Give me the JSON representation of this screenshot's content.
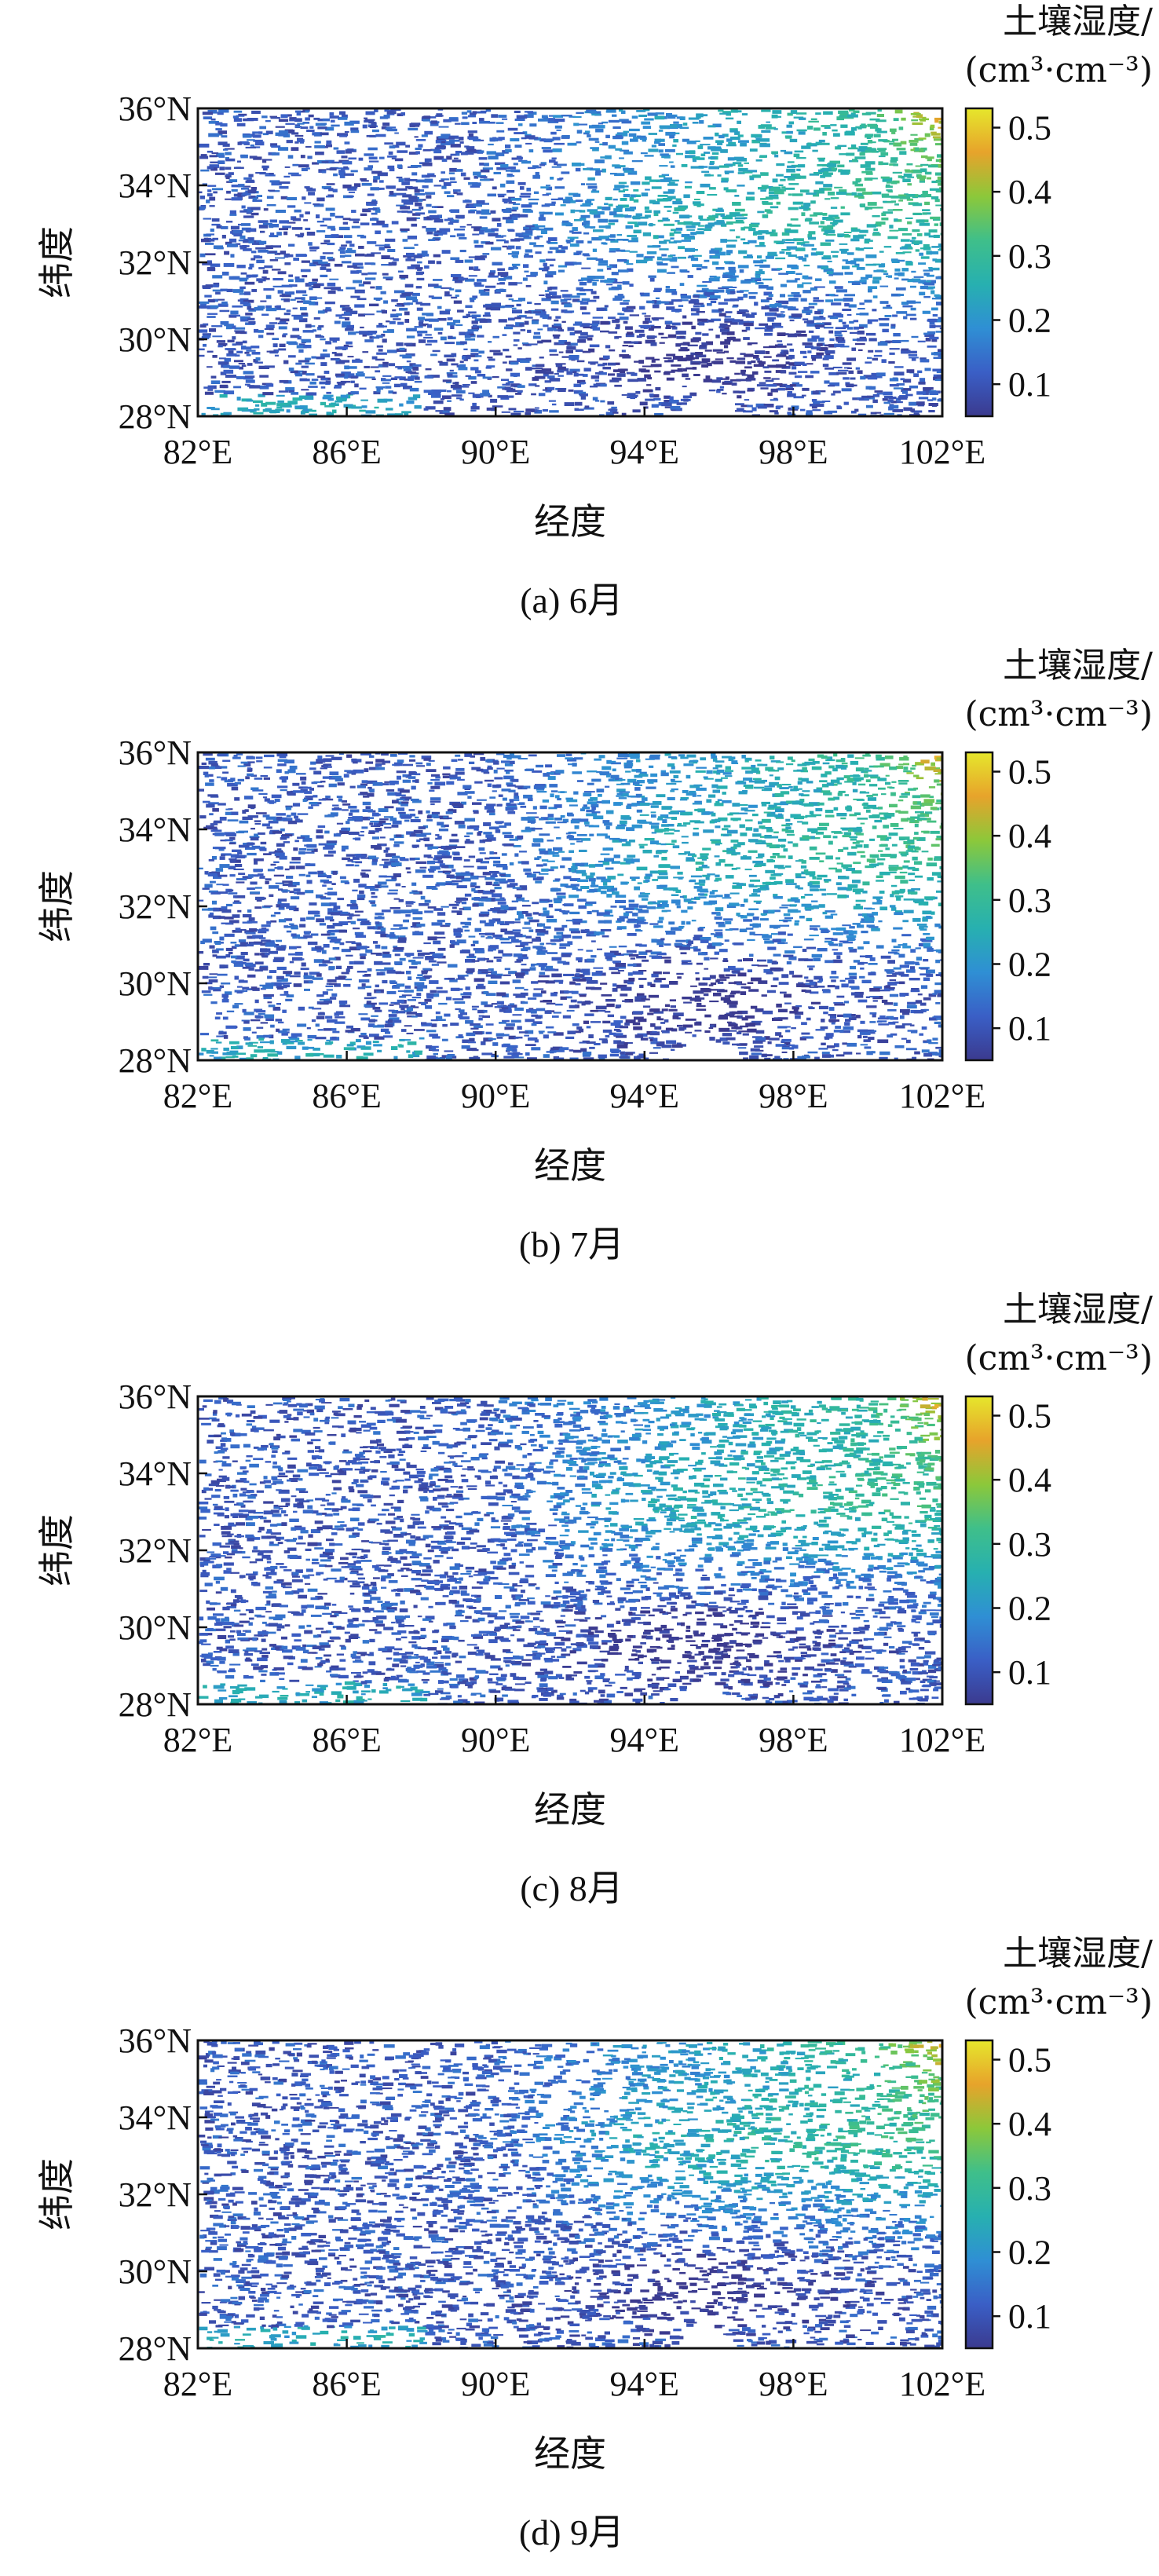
{
  "colorbar": {
    "title_line1": "土壤湿度/",
    "title_line2": "(cm³·cm⁻³)",
    "ticks": [
      "0.1",
      "0.2",
      "0.3",
      "0.4",
      "0.5"
    ],
    "tick_values": [
      0.1,
      0.2,
      0.3,
      0.4,
      0.5
    ],
    "range": [
      0.05,
      0.53
    ],
    "colors": [
      "#3b3a8f",
      "#3a5fc6",
      "#2f8fd4",
      "#27b0b0",
      "#3fbf8a",
      "#8cc83a",
      "#e7a32b",
      "#e6e72c"
    ]
  },
  "axes": {
    "xlabel": "经度",
    "ylabel": "纬度",
    "x_ticks": [
      "82°E",
      "86°E",
      "90°E",
      "94°E",
      "98°E",
      "102°E"
    ],
    "x_tick_values": [
      82,
      86,
      90,
      94,
      98,
      102
    ],
    "y_ticks": [
      "28°N",
      "30°N",
      "32°N",
      "34°N",
      "36°N"
    ],
    "y_tick_values": [
      28,
      30,
      32,
      34,
      36
    ],
    "xlim": [
      82,
      102
    ],
    "ylim": [
      28,
      36
    ]
  },
  "panels": [
    {
      "caption": "(a) 6月"
    },
    {
      "caption": "(b) 7月"
    },
    {
      "caption": "(c) 8月"
    },
    {
      "caption": "(d) 9月"
    }
  ],
  "chart_data": {
    "type": "heatmap",
    "xlabel": "经度",
    "ylabel": "纬度",
    "xlim": [
      82,
      102
    ],
    "ylim": [
      28,
      36
    ],
    "colorbar_label": "土壤湿度/(cm³·cm⁻³)",
    "colorbar_range": [
      0.05,
      0.53
    ],
    "grid": false,
    "panels": [
      "(a) 6月",
      "(b) 7月",
      "(c) 8月",
      "(d) 9月"
    ],
    "regions": [
      {
        "lon": [
          82,
          90
        ],
        "lat": [
          28,
          36
        ],
        "approx_soil_moisture": 0.12
      },
      {
        "lon": [
          90,
          98
        ],
        "lat": [
          31,
          36
        ],
        "approx_soil_moisture": 0.26
      },
      {
        "lon": [
          98,
          102
        ],
        "lat": [
          33,
          36
        ],
        "approx_soil_moisture": 0.35
      },
      {
        "lon": [
          92,
          98
        ],
        "lat": [
          28,
          31
        ],
        "approx_soil_moisture": 0.15
      },
      {
        "lon": [
          82,
          86
        ],
        "lat": [
          28,
          28.6
        ],
        "approx_soil_moisture": 0.25
      }
    ]
  }
}
